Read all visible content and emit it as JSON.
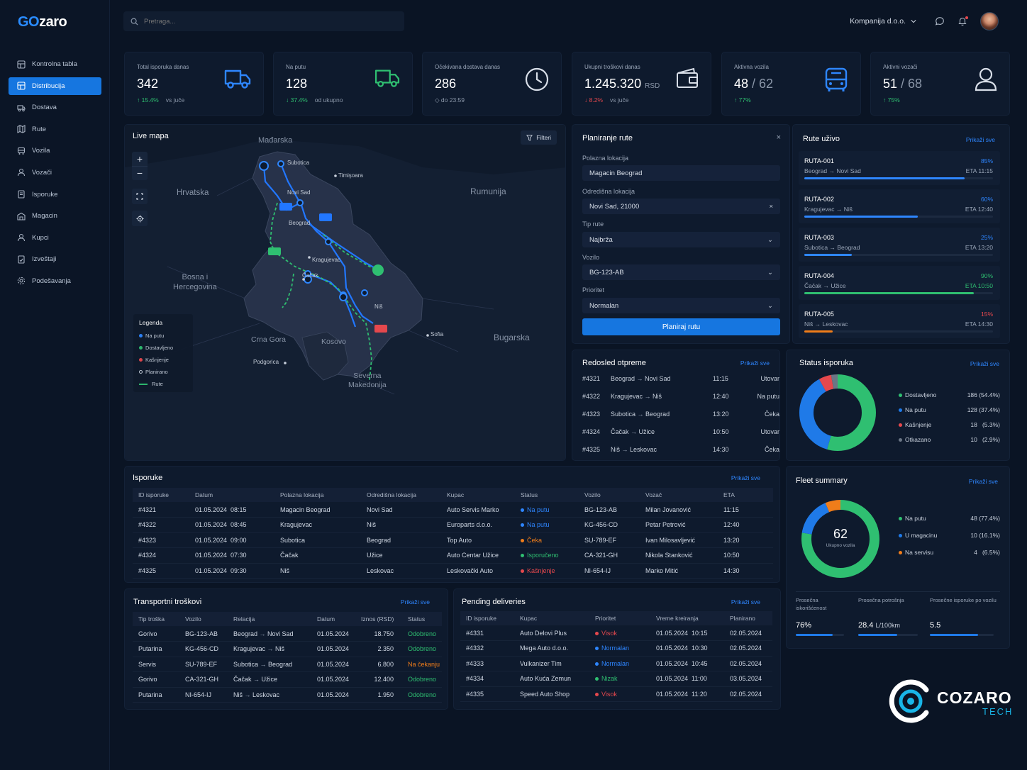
{
  "brand": {
    "go": "GO",
    "rest": "zaro"
  },
  "nav": [
    {
      "label": "Kontrolna tabla",
      "icon": "dashboard-icon",
      "active": false
    },
    {
      "label": "Distribucija",
      "icon": "distribution-icon",
      "active": true
    },
    {
      "label": "Dostava",
      "icon": "truck-icon",
      "active": false
    },
    {
      "label": "Rute",
      "icon": "map-icon",
      "active": false
    },
    {
      "label": "Vozila",
      "icon": "vehicle-icon",
      "active": false
    },
    {
      "label": "Vozači",
      "icon": "driver-icon",
      "active": false
    },
    {
      "label": "Isporuke",
      "icon": "delivery-icon",
      "active": false
    },
    {
      "label": "Magacin",
      "icon": "warehouse-icon",
      "active": false
    },
    {
      "label": "Kupci",
      "icon": "customers-icon",
      "active": false
    },
    {
      "label": "Izveštaji",
      "icon": "reports-icon",
      "active": false
    },
    {
      "label": "Podešavanja",
      "icon": "settings-icon",
      "active": false
    }
  ],
  "search": {
    "placeholder": "Pretraga..."
  },
  "header": {
    "company": "Kompanija d.o.o."
  },
  "kpis": [
    {
      "label": "Total isporuka danas",
      "value": "342",
      "change": "↑ 15.4%",
      "change_note": "vs juče",
      "trend": "up"
    },
    {
      "label": "Na putu",
      "value": "128",
      "change": "↓ 37.4%",
      "change_note": "od ukupno",
      "trend": "up"
    },
    {
      "label": "Očekivana dostava danas",
      "value": "286",
      "change": "",
      "change_note": "◇ do 23:59",
      "trend": "none"
    },
    {
      "label": "Ukupni troškovi danas",
      "value": "1.245.320",
      "unit": "RSD",
      "change": "↓ 8.2%",
      "change_note": "vs juče",
      "trend": "down"
    },
    {
      "label": "Aktivna vozila",
      "value": "48",
      "total": "/ 62",
      "change": "↑ 77%",
      "change_note": "",
      "trend": "up"
    },
    {
      "label": "Aktivni vozači",
      "value": "51",
      "total": "/ 68",
      "change": "↑ 75%",
      "change_note": "",
      "trend": "up"
    }
  ],
  "map": {
    "title": "Live mapa",
    "filter_label": "Filteri",
    "places": {
      "hungary": "Mađarska",
      "romania": "Rumunija",
      "croatia": "Hrvatska",
      "bih1": "Bosna i",
      "bih2": "Hercegovina",
      "montenegro": "Crna Gora",
      "kosovo": "Kosovo",
      "bulgaria": "Bugarska",
      "nm1": "Severna",
      "nm2": "Makedonija",
      "subotica": "Subotica",
      "timisoara": "Timişoara",
      "novisad": "Novi Sad",
      "beograd": "Beograd",
      "cacak": "Čačak",
      "kragujevac": "Kragujevac",
      "nis": "Niš",
      "sofia": "Sofia",
      "podgorica": "Podgorica"
    },
    "legend": {
      "title": "Legenda",
      "on_road": "Na putu",
      "delivered": "Dostavljeno",
      "delayed": "Kašnjenje",
      "planned": "Planirano",
      "routes": "Rute"
    }
  },
  "planner": {
    "title": "Planiranje rute",
    "start_label": "Polazna lokacija",
    "start_value": "Magacin Beograd",
    "dest_label": "Odredišna lokacija",
    "dest_value": "Novi Sad, 21000",
    "type_label": "Tip rute",
    "type_value": "Najbrža",
    "vehicle_label": "Vozilo",
    "vehicle_value": "BG-123-AB",
    "priority_label": "Prioritet",
    "priority_value": "Normalan",
    "button": "Planiraj rutu"
  },
  "live_routes": {
    "title": "Rute uživo",
    "show_all": "Prikaži sve",
    "items": [
      {
        "id": "RUTA-001",
        "from": "Beograd",
        "to": "Novi Sad",
        "progress": "85%",
        "eta": "ETA 11:15",
        "color": "#2e86ff",
        "fill": 0.85
      },
      {
        "id": "RUTA-002",
        "from": "Kragujevac",
        "to": "Niš",
        "progress": "60%",
        "eta": "ETA 12:40",
        "color": "#2e86ff",
        "fill": 0.6
      },
      {
        "id": "RUTA-003",
        "from": "Subotica",
        "to": "Beograd",
        "progress": "25%",
        "eta": "ETA 13:20",
        "color": "#2e86ff",
        "fill": 0.25
      },
      {
        "id": "RUTA-004",
        "from": "Čačak",
        "to": "Užice",
        "progress": "90%",
        "eta": "ETA 10:50",
        "color": "#2fbf71",
        "fill": 0.9
      },
      {
        "id": "RUTA-005",
        "from": "Niš",
        "to": "Leskovac",
        "progress": "15%",
        "eta": "ETA 14:30",
        "color": "#f07d1a",
        "pct_color": "#e5484d",
        "fill": 0.15
      }
    ]
  },
  "dispatch": {
    "title": "Redosled otpreme",
    "show_all": "Prikaži sve",
    "rows": [
      {
        "id": "#4321",
        "from": "Beograd",
        "to": "Novi Sad",
        "time": "11:15",
        "status": "Utovar"
      },
      {
        "id": "#4322",
        "from": "Kragujevac",
        "to": "Niš",
        "time": "12:40",
        "status": "Na putu"
      },
      {
        "id": "#4323",
        "from": "Subotica",
        "to": "Beograd",
        "time": "13:20",
        "status": "Čeka"
      },
      {
        "id": "#4324",
        "from": "Čačak",
        "to": "Užice",
        "time": "10:50",
        "status": "Utovar"
      },
      {
        "id": "#4325",
        "from": "Niš",
        "to": "Leskovac",
        "time": "14:30",
        "status": "Čeka"
      }
    ]
  },
  "status": {
    "title": "Status isporuka",
    "show_all": "Prikaži sve",
    "items": [
      {
        "label": "Dostavljeno",
        "value": "186 (54.4%)",
        "color": "#2fbf71",
        "share": 54.4
      },
      {
        "label": "Na putu",
        "value": "128 (37.4%)",
        "color": "#1f7ae8",
        "share": 37.4
      },
      {
        "label": "Kašnjenje",
        "value": "18   (5.3%)",
        "color": "#e5484d",
        "share": 5.3
      },
      {
        "label": "Otkazano",
        "value": "10   (2.9%)",
        "color": "#6b7686",
        "share": 2.9
      }
    ]
  },
  "deliveries": {
    "title": "Isporuke",
    "show_all": "Prikaži sve",
    "columns": [
      "ID isporuke",
      "Datum",
      "Polazna lokacija",
      "Odredišna lokacija",
      "Kupac",
      "Status",
      "Vozilo",
      "Vozač",
      "ETA"
    ],
    "rows": [
      {
        "id": "#4321",
        "date": "01.05.2024  08:15",
        "from": "Magacin Beograd",
        "to": "Novi Sad",
        "customer": "Auto Servis Marko",
        "status": "Na putu",
        "status_color": "#2e86ff",
        "vehicle": "BG-123-AB",
        "driver": "Milan Jovanović",
        "eta": "11:15"
      },
      {
        "id": "#4322",
        "date": "01.05.2024  08:45",
        "from": "Kragujevac",
        "to": "Niš",
        "customer": "Europarts d.o.o.",
        "status": "Na putu",
        "status_color": "#2e86ff",
        "vehicle": "KG-456-CD",
        "driver": "Petar Petrović",
        "eta": "12:40"
      },
      {
        "id": "#4323",
        "date": "01.05.2024  09:00",
        "from": "Subotica",
        "to": "Beograd",
        "customer": "Top Auto",
        "status": "Čeka",
        "status_color": "#f07d1a",
        "vehicle": "SU-789-EF",
        "driver": "Ivan Milosavljević",
        "eta": "13:20"
      },
      {
        "id": "#4324",
        "date": "01.05.2024  07:30",
        "from": "Čačak",
        "to": "Užice",
        "customer": "Auto Centar Užice",
        "status": "Isporučeno",
        "status_color": "#2fbf71",
        "vehicle": "CA-321-GH",
        "driver": "Nikola Stanković",
        "eta": "10:50"
      },
      {
        "id": "#4325",
        "date": "01.05.2024  09:30",
        "from": "Niš",
        "to": "Leskovac",
        "customer": "Leskovački Auto",
        "status": "Kašnjenje",
        "status_color": "#e5484d",
        "vehicle": "NI-654-IJ",
        "driver": "Marko Mitić",
        "eta": "14:30"
      }
    ]
  },
  "fleet": {
    "title": "Fleet summary",
    "show_all": "Prikaži sve",
    "total": "62",
    "total_label": "Ukupno vozila",
    "items": [
      {
        "label": "Na putu",
        "value": "48 (77.4%)",
        "color": "#2fbf71",
        "share": 77.4
      },
      {
        "label": "U magacinu",
        "value": "10 (16.1%)",
        "color": "#1f7ae8",
        "share": 16.1
      },
      {
        "label": "Na servisu",
        "value": "4   (6.5%)",
        "color": "#f07d1a",
        "share": 6.5
      }
    ],
    "metrics": [
      {
        "label": "Prosečna iskorišćenost",
        "value": "76%",
        "fill": 0.76
      },
      {
        "label": "Prosečna potrošnja",
        "value": "28.4",
        "unit": "L/100km",
        "fill": 0.65
      },
      {
        "label": "Prosečne isporuke po vozilu",
        "value": "5.5",
        "fill": 0.75
      }
    ]
  },
  "costs": {
    "title": "Transportni troškovi",
    "show_all": "Prikaži sve",
    "columns": [
      "Tip troška",
      "Vozilo",
      "Relacija",
      "Datum",
      "Iznos (RSD)",
      "Status"
    ],
    "rows": [
      {
        "type": "Gorivo",
        "vehicle": "BG-123-AB",
        "from": "Beograd",
        "to": "Novi Sad",
        "date": "01.05.2024",
        "amount": "18.750",
        "status": "Odobreno",
        "status_color": "#2fbf71"
      },
      {
        "type": "Putarina",
        "vehicle": "KG-456-CD",
        "from": "Kragujevac",
        "to": "Niš",
        "date": "01.05.2024",
        "amount": "2.350",
        "status": "Odobreno",
        "status_color": "#2fbf71"
      },
      {
        "type": "Servis",
        "vehicle": "SU-789-EF",
        "from": "Subotica",
        "to": "Beograd",
        "date": "01.05.2024",
        "amount": "6.800",
        "status": "Na čekanju",
        "status_color": "#f07d1a"
      },
      {
        "type": "Gorivo",
        "vehicle": "CA-321-GH",
        "from": "Čačak",
        "to": "Užice",
        "date": "01.05.2024",
        "amount": "12.400",
        "status": "Odobreno",
        "status_color": "#2fbf71"
      },
      {
        "type": "Putarina",
        "vehicle": "NI-654-IJ",
        "from": "Niš",
        "to": "Leskovac",
        "date": "01.05.2024",
        "amount": "1.950",
        "status": "Odobreno",
        "status_color": "#2fbf71"
      }
    ]
  },
  "pending": {
    "title": "Pending deliveries",
    "show_all": "Prikaži sve",
    "columns": [
      "ID isporuke",
      "Kupac",
      "Prioritet",
      "Vreme kreiranja",
      "Planirano"
    ],
    "rows": [
      {
        "id": "#4331",
        "customer": "Auto Delovi Plus",
        "priority": "Visok",
        "priority_color": "#e5484d",
        "created": "01.05.2024  10:15",
        "planned": "02.05.2024"
      },
      {
        "id": "#4332",
        "customer": "Mega Auto d.o.o.",
        "priority": "Normalan",
        "priority_color": "#2e86ff",
        "created": "01.05.2024  10:30",
        "planned": "02.05.2024"
      },
      {
        "id": "#4333",
        "customer": "Vulkanizer Tim",
        "priority": "Normalan",
        "priority_color": "#2e86ff",
        "created": "01.05.2024  10:45",
        "planned": "02.05.2024"
      },
      {
        "id": "#4334",
        "customer": "Auto Kuća Zemun",
        "priority": "Nizak",
        "priority_color": "#2fbf71",
        "created": "01.05.2024  11:00",
        "planned": "03.05.2024"
      },
      {
        "id": "#4335",
        "customer": "Speed Auto Shop",
        "priority": "Visok",
        "priority_color": "#e5484d",
        "created": "01.05.2024  11:20",
        "planned": "02.05.2024"
      }
    ]
  },
  "watermark": {
    "name": "COZARO",
    "tag": "TECH"
  }
}
